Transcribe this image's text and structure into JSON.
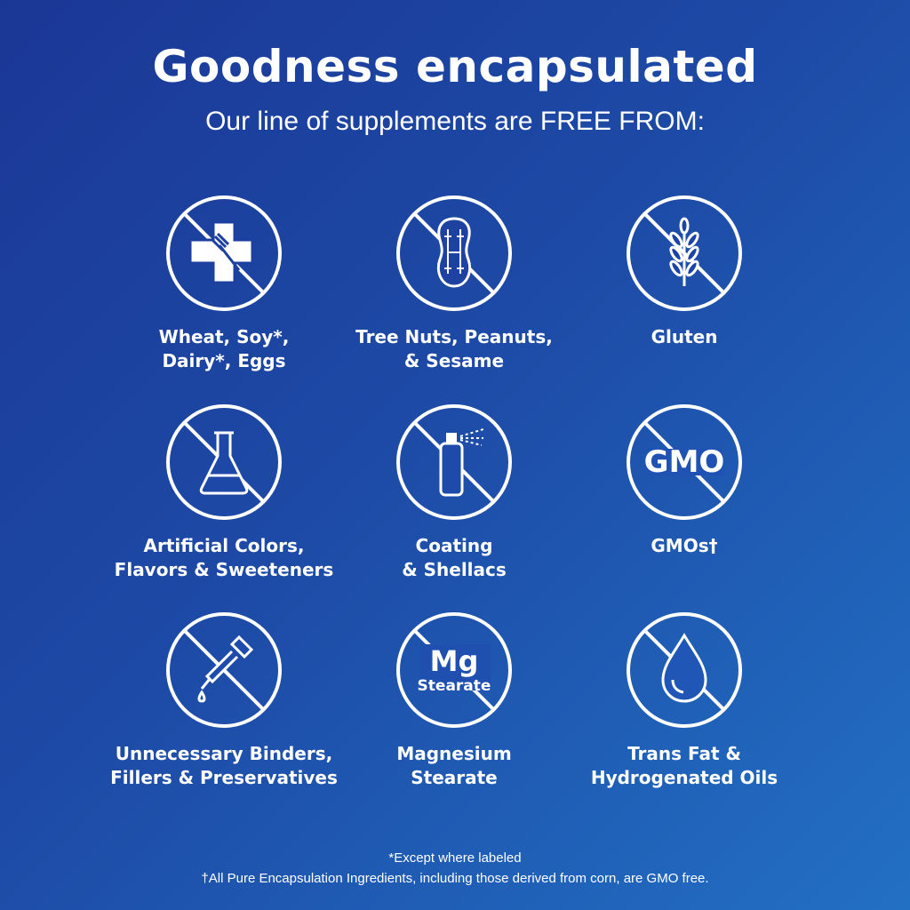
{
  "header": {
    "title": "Goodness encapsulated",
    "subtitle": "Our line of supplements are FREE FROM:"
  },
  "items": [
    {
      "icon": "allergen-cross-fork-icon",
      "label": "Wheat, Soy*,\nDairy*, Eggs"
    },
    {
      "icon": "peanut-icon",
      "label": "Tree Nuts, Peanuts,\n& Sesame"
    },
    {
      "icon": "wheat-icon",
      "label": "Gluten"
    },
    {
      "icon": "flask-icon",
      "label": "Artificial Colors,\nFlavors & Sweeteners"
    },
    {
      "icon": "spray-can-icon",
      "label": "Coating\n& Shellacs"
    },
    {
      "icon": "gmo-icon",
      "icon_text": "GMO",
      "label": "GMOs†"
    },
    {
      "icon": "dropper-icon",
      "label": "Unnecessary Binders,\nFillers & Preservatives"
    },
    {
      "icon": "mg-stearate-icon",
      "icon_text": "Mg",
      "icon_subtext": "Stearate",
      "label": "Magnesium\nStearate"
    },
    {
      "icon": "oil-drop-icon",
      "label": "Trans Fat &\nHydrogenated Oils"
    }
  ],
  "footnotes": [
    "*Except where labeled",
    "†All Pure Encapsulation Ingredients, including those derived from corn, are GMO free."
  ],
  "colors": {
    "background_start": "#1b3796",
    "background_end": "#2270c4",
    "foreground": "#ffffff"
  }
}
